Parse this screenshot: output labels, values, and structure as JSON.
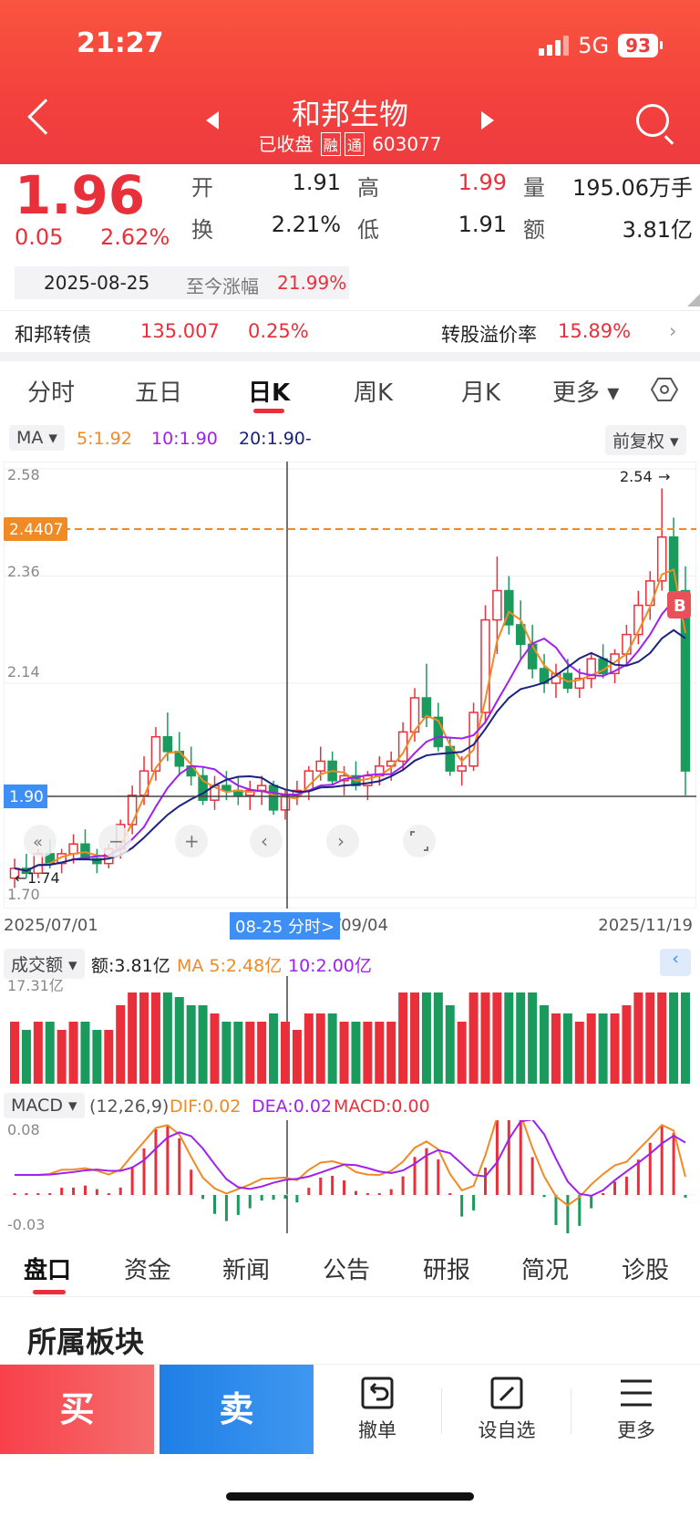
{
  "status": {
    "time": "21:27",
    "network": "5G",
    "battery": "93"
  },
  "header": {
    "title": "和邦生物",
    "status": "已收盘",
    "badge1": "融",
    "badge2": "通",
    "code": "603077"
  },
  "quote": {
    "price": "1.96",
    "change": "0.05",
    "change_pct": "2.62%",
    "open_label": "开",
    "open": "1.91",
    "high_label": "高",
    "high": "1.99",
    "volume_label": "量",
    "volume": "195.06万手",
    "turnover_label": "换",
    "turnover": "2.21%",
    "low_label": "低",
    "low": "1.91",
    "amount_label": "额",
    "amount": "3.81亿",
    "date": "2025-08-25",
    "since_label": "至今涨幅",
    "since_pct": "21.99%"
  },
  "bond": {
    "name": "和邦转债",
    "price": "135.007",
    "pct": "0.25%",
    "premium_label": "转股溢价率",
    "premium": "15.89%"
  },
  "tabs": [
    "分时",
    "五日",
    "日K",
    "周K",
    "月K",
    "更多 ▾"
  ],
  "ma_bar": {
    "selector": "MA ▾",
    "ma5": "5:1.92",
    "ma10": "10:1.90",
    "ma20": "20:1.90-",
    "adjust": "前复权 ▾"
  },
  "chart_labels": {
    "y_top": "2.58",
    "y_2": "2.36",
    "y_3": "2.14",
    "y_cross": "1.90",
    "y_low": "1.70",
    "price_line": "2.4407",
    "max_marker": "2.54",
    "min_marker": "1.74",
    "b_marker": "B",
    "date_left": "2025/07/01",
    "date_mid": "/09/04",
    "date_right": "2025/11/19",
    "cross_tag": "08-25 分时>"
  },
  "vol_bar": {
    "selector": "成交额 ▾",
    "amount": "额:3.81亿",
    "ma5": "MA 5:2.48亿",
    "ma10": "10:2.00亿",
    "max": "17.31亿"
  },
  "macd_bar": {
    "selector": "MACD ▾",
    "params": "(12,26,9)",
    "dif": "DIF:0.02",
    "dea": "DEA:0.02",
    "macd": "MACD:0.00",
    "top": "0.08",
    "bottom": "-0.03"
  },
  "bottom_tabs": [
    "盘口",
    "资金",
    "新闻",
    "公告",
    "研报",
    "简况",
    "诊股"
  ],
  "section": {
    "title": "所属板块"
  },
  "actions": {
    "buy": "买",
    "sell": "卖",
    "cancel": "撤单",
    "watch": "设自选",
    "more": "更多"
  },
  "colors": {
    "up": "#e9303a",
    "down": "#1a9a5c",
    "ma5": "#f08a24",
    "ma10": "#a020f0",
    "ma20": "#1a237e",
    "accent": "#e9303a"
  },
  "chart_data": {
    "type": "candlestick",
    "x_range": [
      "2025/07/01",
      "2025/11/19"
    ],
    "ylim": [
      1.7,
      2.58
    ],
    "y_ticks": [
      2.58,
      2.36,
      2.14,
      1.7
    ],
    "ohlc": [
      [
        1.74,
        1.78,
        1.72,
        1.76
      ],
      [
        1.76,
        1.79,
        1.74,
        1.75
      ],
      [
        1.75,
        1.8,
        1.74,
        1.79
      ],
      [
        1.79,
        1.82,
        1.76,
        1.77
      ],
      [
        1.77,
        1.8,
        1.75,
        1.79
      ],
      [
        1.79,
        1.83,
        1.77,
        1.81
      ],
      [
        1.81,
        1.84,
        1.78,
        1.78
      ],
      [
        1.78,
        1.8,
        1.75,
        1.77
      ],
      [
        1.77,
        1.81,
        1.76,
        1.8
      ],
      [
        1.8,
        1.86,
        1.78,
        1.85
      ],
      [
        1.85,
        1.93,
        1.83,
        1.91
      ],
      [
        1.91,
        1.99,
        1.89,
        1.96
      ],
      [
        1.96,
        2.05,
        1.94,
        2.03
      ],
      [
        2.03,
        2.08,
        1.98,
        2.0
      ],
      [
        2.0,
        2.04,
        1.95,
        1.97
      ],
      [
        1.97,
        2.01,
        1.93,
        1.95
      ],
      [
        1.95,
        1.97,
        1.89,
        1.9
      ],
      [
        1.9,
        1.95,
        1.88,
        1.93
      ],
      [
        1.93,
        1.96,
        1.9,
        1.92
      ],
      [
        1.92,
        1.95,
        1.89,
        1.91
      ],
      [
        1.91,
        1.94,
        1.88,
        1.92
      ],
      [
        1.92,
        1.95,
        1.89,
        1.93
      ],
      [
        1.93,
        1.94,
        1.87,
        1.88
      ],
      [
        1.88,
        1.92,
        1.86,
        1.91
      ],
      [
        1.91,
        1.94,
        1.89,
        1.92
      ],
      [
        1.92,
        1.97,
        1.9,
        1.96
      ],
      [
        1.96,
        2.01,
        1.94,
        1.98
      ],
      [
        1.98,
        2.0,
        1.93,
        1.94
      ],
      [
        1.94,
        1.97,
        1.91,
        1.95
      ],
      [
        1.95,
        1.98,
        1.92,
        1.93
      ],
      [
        1.93,
        1.96,
        1.9,
        1.95
      ],
      [
        1.95,
        1.99,
        1.93,
        1.97
      ],
      [
        1.97,
        2.0,
        1.94,
        1.98
      ],
      [
        1.98,
        2.06,
        1.96,
        2.04
      ],
      [
        2.04,
        2.13,
        2.02,
        2.11
      ],
      [
        2.11,
        2.18,
        2.05,
        2.07
      ],
      [
        2.07,
        2.1,
        2.0,
        2.01
      ],
      [
        2.01,
        2.03,
        1.95,
        1.96
      ],
      [
        1.96,
        1.99,
        1.93,
        1.97
      ],
      [
        1.97,
        2.1,
        1.96,
        2.08
      ],
      [
        2.08,
        2.3,
        2.06,
        2.27
      ],
      [
        2.27,
        2.4,
        2.2,
        2.33
      ],
      [
        2.33,
        2.36,
        2.24,
        2.26
      ],
      [
        2.26,
        2.31,
        2.19,
        2.22
      ],
      [
        2.22,
        2.26,
        2.15,
        2.17
      ],
      [
        2.17,
        2.2,
        2.12,
        2.14
      ],
      [
        2.14,
        2.18,
        2.11,
        2.16
      ],
      [
        2.16,
        2.19,
        2.12,
        2.13
      ],
      [
        2.13,
        2.17,
        2.11,
        2.15
      ],
      [
        2.15,
        2.2,
        2.13,
        2.19
      ],
      [
        2.19,
        2.22,
        2.15,
        2.16
      ],
      [
        2.16,
        2.21,
        2.14,
        2.2
      ],
      [
        2.2,
        2.26,
        2.18,
        2.24
      ],
      [
        2.24,
        2.33,
        2.22,
        2.3
      ],
      [
        2.3,
        2.37,
        2.27,
        2.35
      ],
      [
        2.35,
        2.54,
        2.33,
        2.44
      ],
      [
        2.44,
        2.48,
        2.3,
        2.33
      ],
      [
        2.33,
        2.38,
        1.91,
        1.96
      ]
    ],
    "series": [
      {
        "name": "MA5",
        "value": 1.92
      },
      {
        "name": "MA10",
        "value": 1.9
      },
      {
        "name": "MA20",
        "value": 1.9
      }
    ]
  }
}
